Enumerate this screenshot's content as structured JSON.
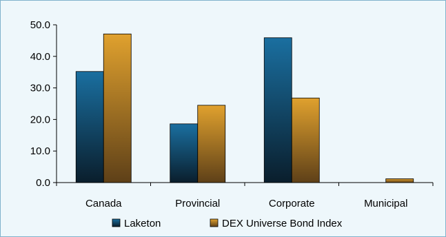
{
  "chart_data": {
    "type": "bar",
    "categories": [
      "Canada",
      "Provincial",
      "Corporate",
      "Municipal"
    ],
    "series": [
      {
        "name": "Laketon",
        "values": [
          35.2,
          18.6,
          45.9,
          0.0
        ]
      },
      {
        "name": "DEX Universe Bond Index",
        "values": [
          47.1,
          24.5,
          26.8,
          1.2
        ]
      }
    ],
    "ylim": [
      0,
      50
    ],
    "yticks": [
      "0.0",
      "10.0",
      "20.0",
      "30.0",
      "40.0",
      "50.0"
    ],
    "legend_position": "bottom",
    "grid": false,
    "colors": {
      "laketon_top": "#1a6fa0",
      "laketon_bottom": "#0a1e2c",
      "dex_top": "#e0a12e",
      "dex_bottom": "#5e4018",
      "background": "#eef7fb",
      "border": "#7fb2cc"
    }
  }
}
